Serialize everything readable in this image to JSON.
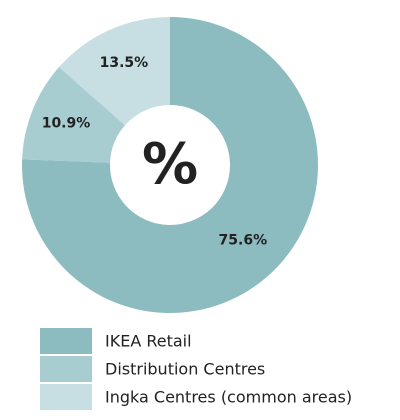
{
  "chart_data": {
    "type": "donut",
    "center_label": "%",
    "categories": [
      "IKEA Retail",
      "Distribution Centres",
      "Ingka Centres (common areas)"
    ],
    "values": [
      75.6,
      10.9,
      13.5
    ],
    "value_labels": [
      "75.6%",
      "10.9%",
      "13.5%"
    ],
    "colors": [
      "#8dbcc0",
      "#a8cdd1",
      "#c7dfe2"
    ]
  }
}
